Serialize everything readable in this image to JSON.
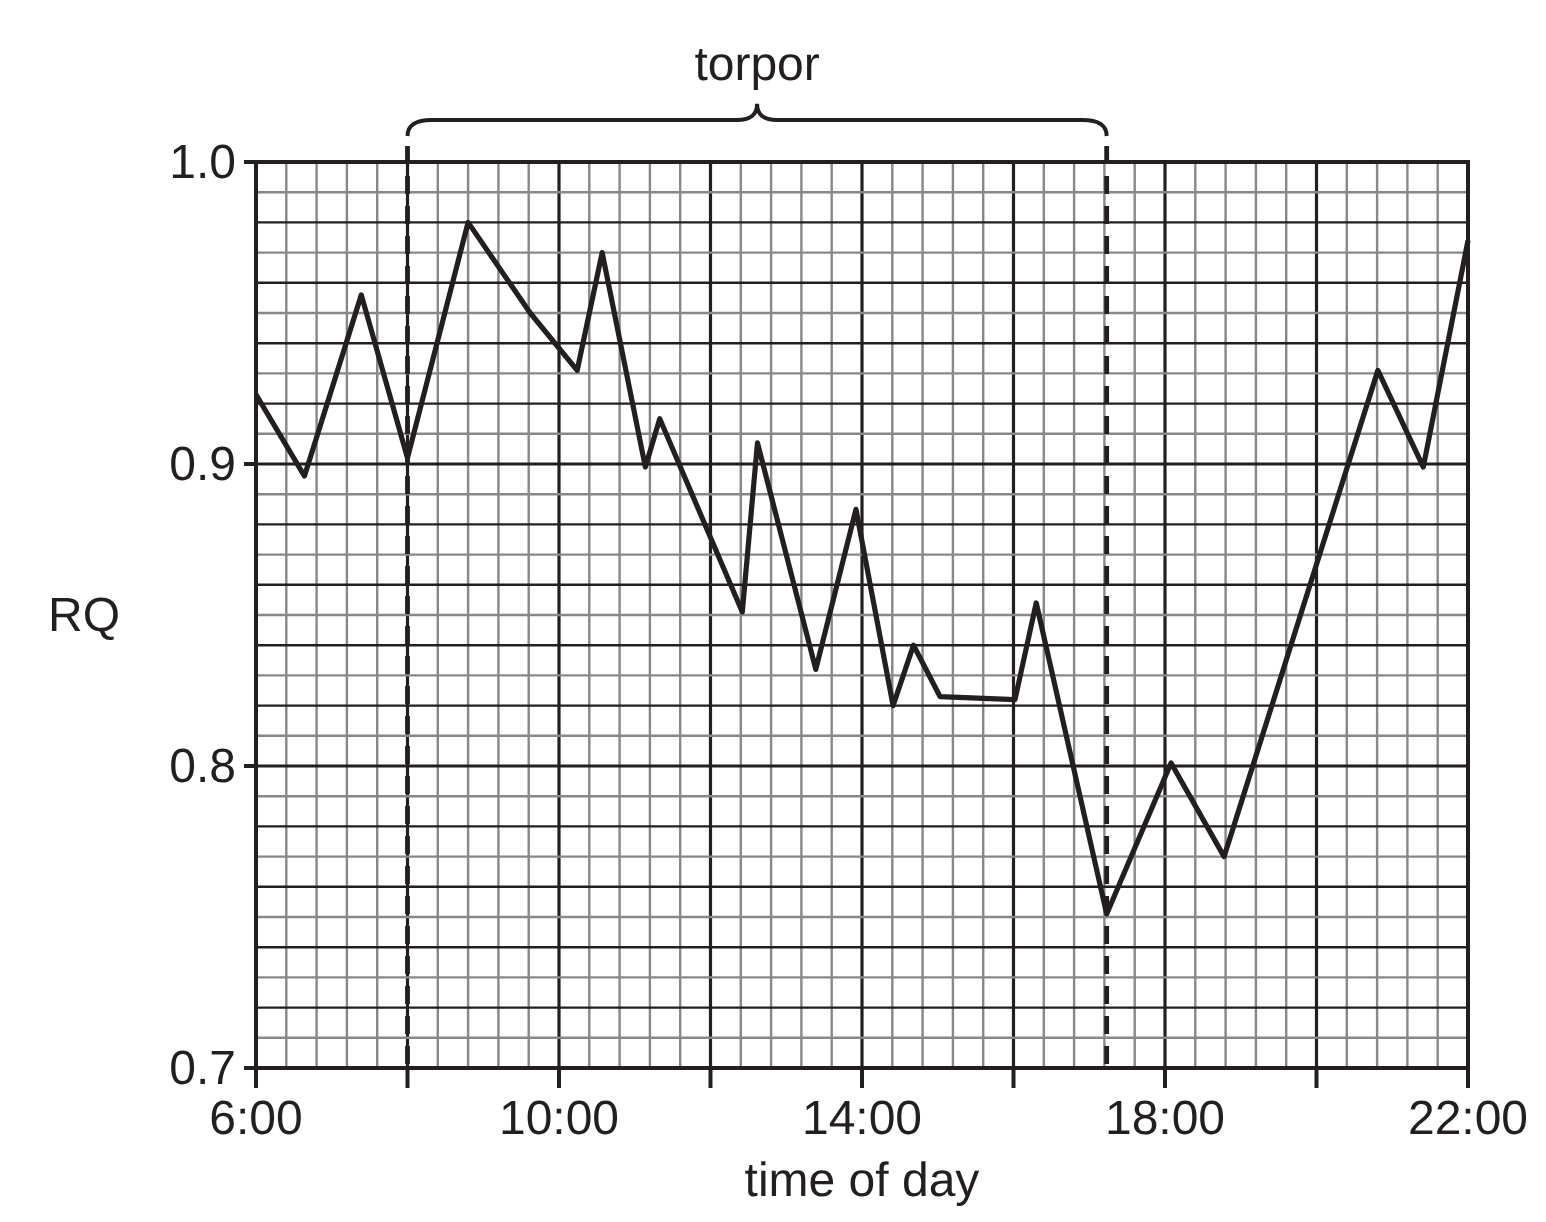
{
  "chart_data": {
    "type": "line",
    "xlabel": "time of day",
    "ylabel": "RQ",
    "annotations": [
      "torpor"
    ],
    "x": [
      6.0,
      6.64,
      7.39,
      8.0,
      8.8,
      9.62,
      10.24,
      10.57,
      11.14,
      11.33,
      12.42,
      12.62,
      13.39,
      13.92,
      14.41,
      14.68,
      15.03,
      16.02,
      16.3,
      17.23,
      18.08,
      18.78,
      20.81,
      21.41,
      22.0
    ],
    "series": [
      {
        "color": "#231f20",
        "values": [
          0.923,
          0.896,
          0.956,
          0.902,
          0.98,
          0.95,
          0.931,
          0.97,
          0.899,
          0.915,
          0.851,
          0.907,
          0.832,
          0.885,
          0.82,
          0.84,
          0.823,
          0.822,
          0.854,
          0.751,
          0.801,
          0.77,
          0.931,
          0.899,
          0.974
        ]
      }
    ],
    "xlim": [
      6,
      22
    ],
    "xticks": [
      {
        "value": 6,
        "label": "6:00"
      },
      {
        "value": 8,
        "label": null
      },
      {
        "value": 10,
        "label": "10:00"
      },
      {
        "value": 12,
        "label": null
      },
      {
        "value": 14,
        "label": "14:00"
      },
      {
        "value": 16,
        "label": null
      },
      {
        "value": 18,
        "label": "18:00"
      },
      {
        "value": 20,
        "label": null
      },
      {
        "value": 22,
        "label": "22:00"
      }
    ],
    "ylim": [
      0.7,
      1.0
    ],
    "yticks": [
      0.7,
      0.8,
      0.9,
      {
        "value": 1.0,
        "label": "1.0"
      }
    ],
    "grid": true,
    "marker": "none",
    "line_style": "solid",
    "ref_lines": [
      {
        "axis": "x",
        "value": 8,
        "line_style": "dashed",
        "color": "#231f20"
      },
      {
        "axis": "x",
        "value": 17.23,
        "line_style": "dashed",
        "color": "#231f20"
      }
    ]
  }
}
